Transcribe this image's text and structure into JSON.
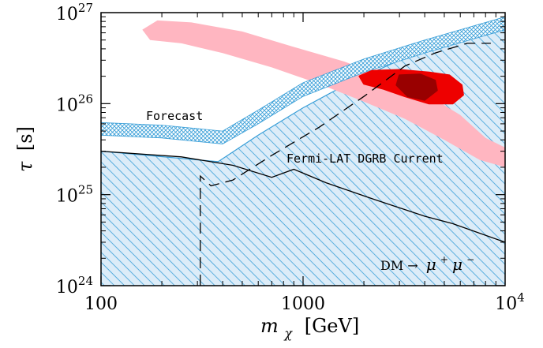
{
  "chart_data": {
    "type": "area",
    "x_scale": "log",
    "y_scale": "log",
    "xlim": [
      100,
      10000
    ],
    "ylim": [
      1e+24,
      1e+27
    ],
    "xlabel_var": "m",
    "xlabel_sub": "χ",
    "xlabel_unit": "[GeV]",
    "ylabel_var": "τ",
    "ylabel_unit": "[s]",
    "x_ticks": [
      {
        "value": 100,
        "label": "100"
      },
      {
        "value": 1000,
        "label": "1000"
      },
      {
        "value": 10000,
        "base": "10",
        "exp": "4"
      }
    ],
    "y_ticks": [
      {
        "value": 1e+24,
        "base": "10",
        "exp": "24"
      },
      {
        "value": 1e+25,
        "base": "10",
        "exp": "25"
      },
      {
        "value": 1e+26,
        "base": "10",
        "exp": "26"
      },
      {
        "value": 1e+27,
        "base": "10",
        "exp": "27"
      }
    ],
    "annotations": {
      "forecast": "Forecast",
      "current": "Fermi-LAT DGRB Current",
      "channel_prefix": "DM →",
      "channel_particle": "μ",
      "channel_sup_plus": "+",
      "channel_sup_minus": "−"
    },
    "colors": {
      "hatch": "#3a9fd8",
      "fill": "#dcecf8",
      "pink": "#ffb6c1",
      "red": "#ee0000",
      "darkred": "#8b0000"
    },
    "series": [
      {
        "role": "current_limit_hatched",
        "points": [
          [
            100,
            3e+25
          ],
          [
            380,
            2.3e+25
          ],
          [
            600,
            4.5e+25
          ],
          [
            1000,
            9e+25
          ],
          [
            1700,
            1.7e+26
          ],
          [
            3000,
            3e+26
          ],
          [
            5000,
            4.2e+26
          ],
          [
            10000,
            6.5e+26
          ]
        ]
      },
      {
        "role": "forecast_band_lower",
        "points": [
          [
            100,
            4.5e+25
          ],
          [
            200,
            4.2e+25
          ],
          [
            400,
            3.6e+25
          ],
          [
            600,
            6e+25
          ],
          [
            1000,
            1.2e+26
          ],
          [
            2000,
            2.2e+26
          ],
          [
            4000,
            3.6e+26
          ],
          [
            10000,
            6.5e+26
          ]
        ]
      },
      {
        "role": "forecast_band_upper",
        "points": [
          [
            100,
            6.2e+25
          ],
          [
            200,
            5.8e+25
          ],
          [
            400,
            5e+25
          ],
          [
            600,
            8.5e+25
          ],
          [
            1000,
            1.7e+26
          ],
          [
            2000,
            3.1e+26
          ],
          [
            4000,
            5e+26
          ],
          [
            10000,
            9e+26
          ]
        ]
      },
      {
        "role": "solid_line",
        "points": [
          [
            100,
            3e+25
          ],
          [
            250,
            2.6e+25
          ],
          [
            450,
            2.1e+25
          ],
          [
            700,
            1.55e+25
          ],
          [
            900,
            1.9e+25
          ],
          [
            1300,
            1.35e+25
          ],
          [
            2200,
            9e+24
          ],
          [
            4000,
            5.8e+24
          ],
          [
            5500,
            4.8e+24
          ],
          [
            10000,
            3e+24
          ]
        ]
      },
      {
        "role": "dashed_line",
        "points": [
          [
            310,
            1e+24
          ],
          [
            310,
            1.6e+25
          ],
          [
            350,
            1.25e+25
          ],
          [
            450,
            1.45e+25
          ],
          [
            700,
            2.7e+25
          ],
          [
            1200,
            5.5e+25
          ],
          [
            2000,
            1.2e+26
          ],
          [
            3200,
            2.6e+26
          ],
          [
            4500,
            3.6e+26
          ],
          [
            6500,
            4.6e+26
          ],
          [
            8500,
            4.6e+26
          ]
        ]
      },
      {
        "role": "pink_region",
        "points": [
          [
            160,
            6.5e+26
          ],
          [
            190,
            8.2e+26
          ],
          [
            280,
            7.8e+26
          ],
          [
            500,
            6.2e+26
          ],
          [
            900,
            4.2e+26
          ],
          [
            1600,
            2.9e+26
          ],
          [
            2500,
            2e+26
          ],
          [
            4000,
            1.3e+26
          ],
          [
            6000,
            7.5e+25
          ],
          [
            8000,
            4.2e+25
          ],
          [
            10000,
            3.3e+25
          ],
          [
            10000,
            2e+25
          ],
          [
            7500,
            2.4e+25
          ],
          [
            5000,
            4e+25
          ],
          [
            3200,
            6.8e+25
          ],
          [
            2000,
            1.05e+26
          ],
          [
            1200,
            1.65e+26
          ],
          [
            700,
            2.5e+26
          ],
          [
            400,
            3.6e+26
          ],
          [
            250,
            4.6e+26
          ],
          [
            175,
            5e+26
          ]
        ]
      },
      {
        "role": "red_region",
        "points": [
          [
            1900,
            2e+26
          ],
          [
            2200,
            2.3e+26
          ],
          [
            3000,
            2.35e+26
          ],
          [
            4200,
            2.2e+26
          ],
          [
            5300,
            2.05e+26
          ],
          [
            6100,
            1.6e+26
          ],
          [
            6200,
            1.25e+26
          ],
          [
            5500,
            1e+26
          ],
          [
            4200,
            1e+26
          ],
          [
            3200,
            1.2e+26
          ],
          [
            2500,
            1.45e+26
          ],
          [
            2000,
            1.65e+26
          ]
        ]
      },
      {
        "role": "darkred_region",
        "points": [
          [
            3000,
            2.05e+26
          ],
          [
            3800,
            2.1e+26
          ],
          [
            4500,
            1.8e+26
          ],
          [
            4600,
            1.4e+26
          ],
          [
            4000,
            1.1e+26
          ],
          [
            3300,
            1.2e+26
          ],
          [
            2900,
            1.6e+26
          ]
        ]
      }
    ]
  }
}
